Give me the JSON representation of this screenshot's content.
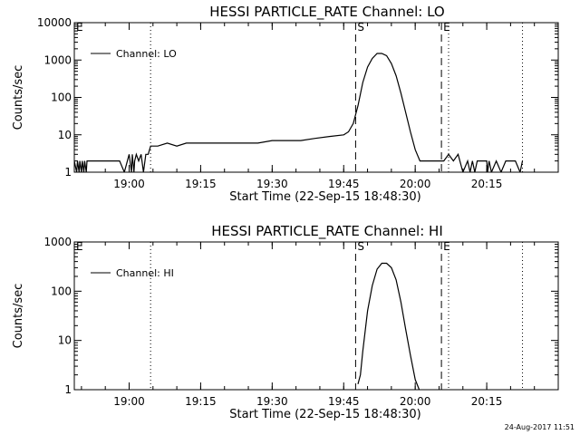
{
  "stamp": "24-Aug-2017 11:51",
  "chart_data": [
    {
      "type": "line",
      "title": "HESSI PARTICLE_RATE Channel: LO",
      "xlabel": "Start Time (22-Sep-15 18:48:30)",
      "ylabel": "Counts/sec",
      "yscale": "log",
      "ylim": [
        1,
        10000
      ],
      "xlim": [
        "18:48:30",
        "20:30:00"
      ],
      "x_ticks": [
        "19:00",
        "19:15",
        "19:30",
        "19:45",
        "20:00",
        "20:15"
      ],
      "y_ticks": [
        "1",
        "10",
        "100",
        "1000",
        "10000"
      ],
      "legend": {
        "entries": [
          "Channel: LO"
        ],
        "placement": "upper-left"
      },
      "markers": [
        {
          "label": "E",
          "time": "18:48:30",
          "style": "dotted"
        },
        {
          "label": "",
          "time": "19:04:30",
          "style": "dotted"
        },
        {
          "label": "S",
          "time": "19:47:30",
          "style": "dashed"
        },
        {
          "label": "E",
          "time": "20:05:30",
          "style": "dashed"
        },
        {
          "label": "",
          "time": "20:07:00",
          "style": "dotted"
        },
        {
          "label": "",
          "time": "20:22:30",
          "style": "dotted"
        }
      ],
      "series": [
        {
          "name": "Channel: LO",
          "x": [
            "18:48:30",
            "18:49:00",
            "18:49:10",
            "18:49:30",
            "18:49:40",
            "18:50:00",
            "18:50:10",
            "18:50:30",
            "18:50:40",
            "18:51:00",
            "18:51:10",
            "18:52:00",
            "18:53:00",
            "18:54:00",
            "18:55:00",
            "18:56:00",
            "18:57:00",
            "18:58:00",
            "18:59:00",
            "19:00:00",
            "19:00:30",
            "19:00:40",
            "19:01:00",
            "19:01:10",
            "19:01:30",
            "19:02:00",
            "19:02:30",
            "19:03:00",
            "19:03:30",
            "19:04:00",
            "19:04:30",
            "19:06:00",
            "19:08:00",
            "19:10:00",
            "19:12:00",
            "19:15:00",
            "19:18:00",
            "19:21:00",
            "19:24:00",
            "19:27:00",
            "19:30:00",
            "19:33:00",
            "19:36:00",
            "19:39:00",
            "19:42:00",
            "19:45:00",
            "19:46:00",
            "19:47:00",
            "19:48:00",
            "19:49:00",
            "19:50:00",
            "19:51:00",
            "19:52:00",
            "19:53:00",
            "19:54:00",
            "19:55:00",
            "19:56:00",
            "19:57:00",
            "19:58:00",
            "19:59:00",
            "20:00:00",
            "20:01:00",
            "20:02:00",
            "20:03:00",
            "20:04:00",
            "20:05:00",
            "20:06:00",
            "20:07:00",
            "20:08:00",
            "20:09:00",
            "20:10:00",
            "20:11:00",
            "20:11:30",
            "20:12:00",
            "20:12:30",
            "20:13:00",
            "20:14:00",
            "20:15:00",
            "20:15:10",
            "20:15:30",
            "20:16:00",
            "20:17:00",
            "20:18:00",
            "20:19:00",
            "20:20:00",
            "20:21:00",
            "20:22:00",
            "20:22:30"
          ],
          "values": [
            2,
            1,
            2,
            1,
            2,
            1,
            2,
            1,
            2,
            1,
            2,
            2,
            2,
            2,
            2,
            2,
            2,
            2,
            1,
            3,
            1,
            3,
            1,
            2,
            3,
            2,
            3,
            1,
            3,
            3,
            5,
            5,
            6,
            5,
            6,
            6,
            6,
            6,
            6,
            6,
            7,
            7,
            7,
            8,
            9,
            10,
            12,
            20,
            60,
            250,
            650,
            1100,
            1500,
            1500,
            1300,
            800,
            380,
            130,
            40,
            12,
            4,
            2,
            2,
            2,
            2,
            2,
            2,
            3,
            2,
            3,
            1,
            2,
            1,
            2,
            1,
            2,
            2,
            2,
            1,
            2,
            1,
            2,
            1,
            2,
            2,
            2,
            1,
            2
          ]
        }
      ]
    },
    {
      "type": "line",
      "title": "HESSI PARTICLE_RATE Channel: HI",
      "xlabel": "Start Time (22-Sep-15 18:48:30)",
      "ylabel": "Counts/sec",
      "yscale": "log",
      "ylim": [
        1,
        1000
      ],
      "xlim": [
        "18:48:30",
        "20:30:00"
      ],
      "x_ticks": [
        "19:00",
        "19:15",
        "19:30",
        "19:45",
        "20:00",
        "20:15"
      ],
      "y_ticks": [
        "1",
        "10",
        "100",
        "1000"
      ],
      "legend": {
        "entries": [
          "Channel: HI"
        ],
        "placement": "upper-left"
      },
      "markers": [
        {
          "label": "E",
          "time": "18:48:30",
          "style": "dotted"
        },
        {
          "label": "",
          "time": "19:04:30",
          "style": "dotted"
        },
        {
          "label": "S",
          "time": "19:47:30",
          "style": "dashed"
        },
        {
          "label": "E",
          "time": "20:05:30",
          "style": "dashed"
        },
        {
          "label": "",
          "time": "20:07:00",
          "style": "dotted"
        },
        {
          "label": "",
          "time": "20:22:30",
          "style": "dotted"
        }
      ],
      "series": [
        {
          "name": "Channel: HI",
          "x": [
            "19:48:00",
            "19:48:30",
            "19:49:00",
            "19:50:00",
            "19:51:00",
            "19:52:00",
            "19:53:00",
            "19:54:00",
            "19:55:00",
            "19:56:00",
            "19:57:00",
            "19:58:00",
            "19:59:00",
            "20:00:00",
            "20:00:50"
          ],
          "values": [
            1.3,
            2,
            6,
            40,
            130,
            280,
            370,
            370,
            300,
            170,
            60,
            17,
            5,
            1.6,
            1
          ]
        }
      ]
    }
  ]
}
